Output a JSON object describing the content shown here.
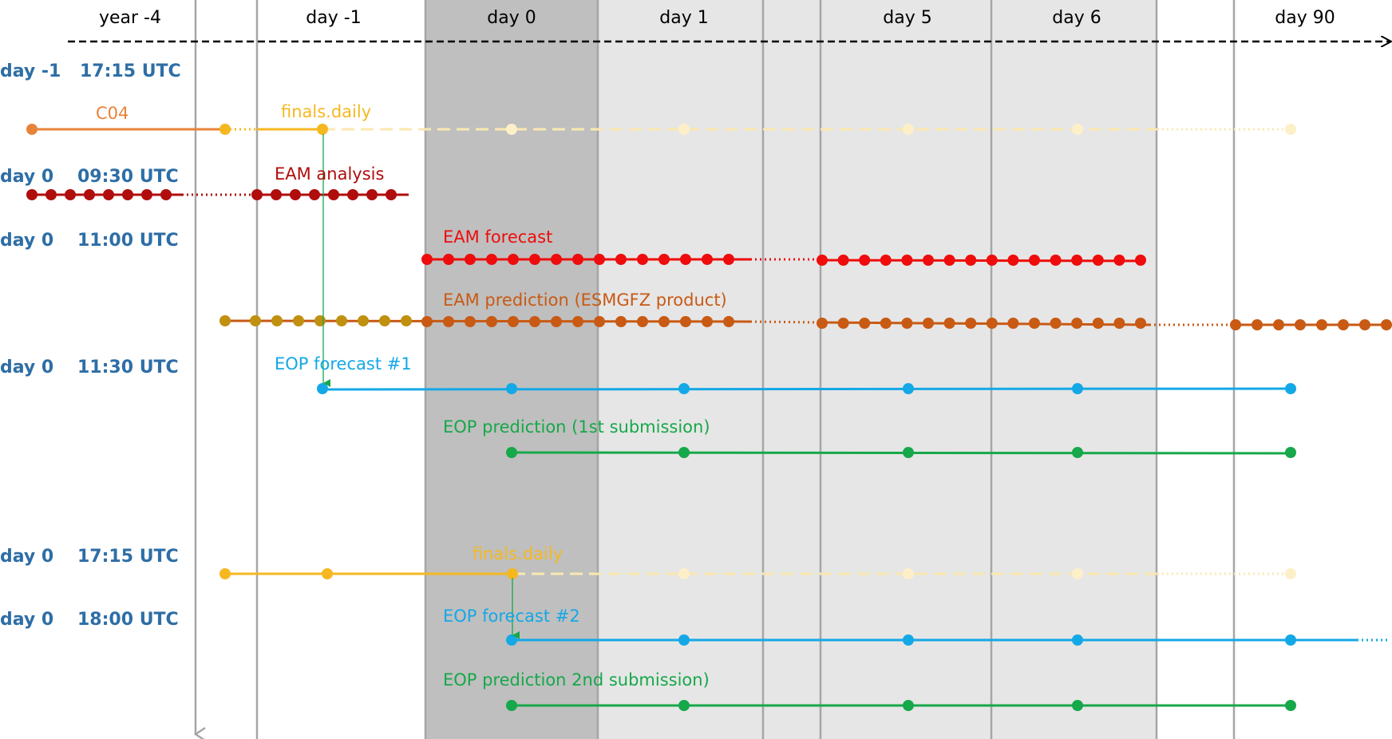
{
  "colors": {
    "c04": "#e8833a",
    "finals": "#f5b820",
    "finals_pale": "#fbe8b0",
    "finals_pale_dot": "#fdf0c8",
    "eam_analysis": "#b00d0d",
    "eam_forecast": "#ee0c0c",
    "eam_pred_old": "#c09010",
    "eam_pred": "#c85a14",
    "eop_forecast": "#14a8e6",
    "eop_prediction": "#16a84a",
    "slot_text": "#2e6ea6",
    "band_dark": "#bfbfbf",
    "band_light": "#e6e6e6",
    "gridline": "#a6a6a6"
  },
  "columns": [
    "year -4",
    "day -1",
    "day 0",
    "day 1",
    "day 5",
    "day 6",
    "day 90"
  ],
  "time_slots": [
    {
      "day": "day -1",
      "time": "17:15 UTC"
    },
    {
      "day": "day 0",
      "time": "09:30 UTC"
    },
    {
      "day": "day 0",
      "time": "11:00 UTC"
    },
    {
      "day": "day 0",
      "time": "11:30 UTC"
    },
    {
      "day": "day 0",
      "time": "17:15 UTC"
    },
    {
      "day": "day 0",
      "time": "18:00 UTC"
    }
  ],
  "series_labels": {
    "c04": "C04",
    "finals_1": "finals.daily",
    "eam_analysis": "EAM analysis",
    "eam_forecast": "EAM forecast",
    "eam_prediction": "EAM prediction (ESMGFZ product)",
    "eop_forecast_1": "EOP forecast #1",
    "eop_prediction_1": "EOP prediction (1st submission)",
    "finals_2": "finals.daily",
    "eop_forecast_2": "EOP forecast #2",
    "eop_prediction_2": "EOP prediction 2nd submission)"
  }
}
